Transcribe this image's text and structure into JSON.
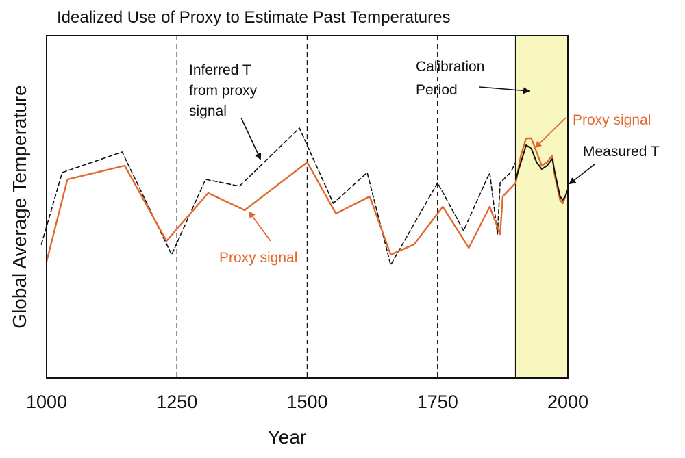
{
  "chart_data": {
    "type": "line",
    "title": "Idealized Use of Proxy to Estimate Past Temperatures",
    "xlabel": "Year",
    "ylabel": "Global Average Temperature",
    "xlim": [
      1000,
      2000
    ],
    "ylim": [
      0,
      10
    ],
    "xticks": [
      1000,
      1250,
      1500,
      1750,
      2000
    ],
    "y_tick_labels": "none",
    "grid": false,
    "vertical_dashed_lines": [
      1250,
      1500,
      1750
    ],
    "calibration_period": {
      "label": "Calibration Period",
      "x_start": 1900,
      "x_end": 2000,
      "color": "#f8f7bf"
    },
    "colors": {
      "proxy": "#e2682d",
      "inferred": "#111111",
      "measured": "#111111",
      "axis": "#111111"
    },
    "series": [
      {
        "key": "inferred",
        "x": [
          990,
          1030,
          1145,
          1240,
          1305,
          1370,
          1485,
          1550,
          1615,
          1660,
          1750,
          1800,
          1850,
          1865,
          1870,
          1890,
          1900
        ],
        "y": [
          3.9,
          6.0,
          6.6,
          3.6,
          5.8,
          5.6,
          7.3,
          5.1,
          6.0,
          3.3,
          5.7,
          4.3,
          6.0,
          4.2,
          5.7,
          6.0,
          6.3
        ]
      },
      {
        "key": "proxy",
        "x": [
          1000,
          1040,
          1150,
          1230,
          1310,
          1380,
          1500,
          1555,
          1620,
          1660,
          1705,
          1760,
          1810,
          1850,
          1865,
          1870,
          1875,
          1900
        ],
        "y": [
          3.4,
          5.8,
          6.2,
          4.0,
          5.4,
          4.9,
          6.3,
          4.8,
          5.3,
          3.6,
          3.9,
          5.0,
          3.8,
          5.0,
          4.4,
          4.2,
          5.3,
          5.7
        ],
        "calibration_x": [
          1900,
          1910,
          1920,
          1930,
          1940,
          1950,
          1960,
          1970,
          1975,
          1985,
          1990,
          1995,
          2000
        ],
        "calibration_y": [
          5.7,
          6.5,
          7.0,
          7.0,
          6.6,
          6.2,
          6.3,
          6.5,
          5.9,
          5.2,
          5.1,
          5.3,
          5.5
        ]
      },
      {
        "key": "measured",
        "x": [
          1900,
          1910,
          1920,
          1930,
          1940,
          1950,
          1960,
          1970,
          1975,
          1985,
          1990,
          1995,
          2000
        ],
        "y": [
          5.8,
          6.3,
          6.8,
          6.7,
          6.3,
          6.1,
          6.2,
          6.4,
          6.0,
          5.3,
          5.2,
          5.3,
          5.5
        ]
      }
    ],
    "annotations": {
      "inferred": {
        "lines": [
          "Inferred T",
          "from proxy",
          "signal"
        ]
      },
      "calibration": {
        "lines": [
          "Calibration",
          "Period"
        ]
      },
      "proxy_main": {
        "text": "Proxy signal"
      },
      "proxy_calib": {
        "text": "Proxy signal"
      },
      "measured": {
        "text": "Measured T"
      }
    }
  }
}
